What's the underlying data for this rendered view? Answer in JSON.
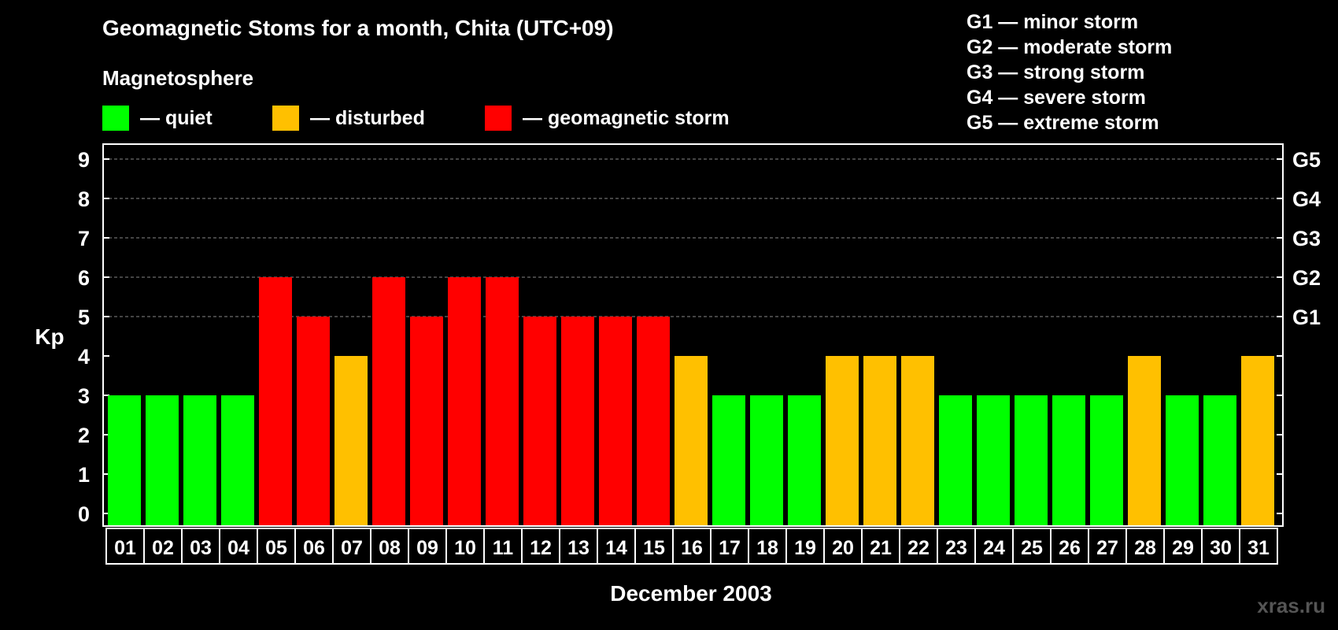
{
  "header": {
    "title": "Geomagnetic Stoms for a month, Chita (UTC+09)",
    "legend_heading": "Magnetosphere"
  },
  "legend": [
    {
      "label": "— quiet",
      "color": "#00ff00"
    },
    {
      "label": "— disturbed",
      "color": "#ffc000"
    },
    {
      "label": "— geomagnetic storm",
      "color": "#ff0000"
    }
  ],
  "storm_scale": [
    "G1 — minor storm",
    "G2 — moderate storm",
    "G3 — strong storm",
    "G4 — severe storm",
    "G5 — extreme storm"
  ],
  "watermark": "xras.ru",
  "colors": {
    "quiet": "#00ff00",
    "disturbed": "#ffc000",
    "storm": "#ff0000",
    "grid": "#888888",
    "axis": "#ffffff"
  },
  "chart_data": {
    "type": "bar",
    "title": "Geomagnetic Stoms for a month, Chita (UTC+09)",
    "xlabel": "December 2003",
    "ylabel": "Kp",
    "ylim": [
      0,
      9
    ],
    "yticks": [
      0,
      1,
      2,
      3,
      4,
      5,
      6,
      7,
      8,
      9
    ],
    "right_axis": [
      {
        "kp": 5,
        "label": "G1"
      },
      {
        "kp": 6,
        "label": "G2"
      },
      {
        "kp": 7,
        "label": "G3"
      },
      {
        "kp": 8,
        "label": "G4"
      },
      {
        "kp": 9,
        "label": "G5"
      }
    ],
    "categories": [
      "01",
      "02",
      "03",
      "04",
      "05",
      "06",
      "07",
      "08",
      "09",
      "10",
      "11",
      "12",
      "13",
      "14",
      "15",
      "16",
      "17",
      "18",
      "19",
      "20",
      "21",
      "22",
      "23",
      "24",
      "25",
      "26",
      "27",
      "28",
      "29",
      "30",
      "31"
    ],
    "values": [
      3,
      3,
      3,
      3,
      6,
      5,
      4,
      6,
      5,
      6,
      6,
      5,
      5,
      5,
      5,
      4,
      3,
      3,
      3,
      4,
      4,
      4,
      3,
      3,
      3,
      3,
      3,
      4,
      3,
      3,
      4
    ],
    "color_rule": {
      "quiet": "Kp <= 3",
      "disturbed": "Kp = 4",
      "storm": "Kp >= 5"
    }
  }
}
